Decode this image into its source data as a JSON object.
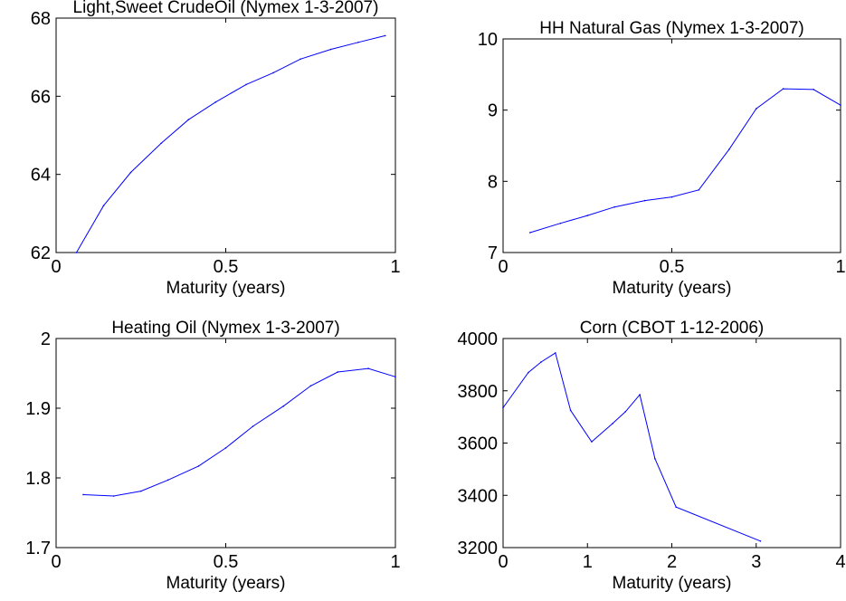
{
  "chart_data": [
    {
      "type": "line",
      "title": "Light,Sweet CrudeOil (Nymex 1-3-2007)",
      "xlabel": "Maturity (years)",
      "ylabel": "",
      "xlim": [
        0,
        1
      ],
      "ylim": [
        62,
        68
      ],
      "xticks": [
        0,
        0.5,
        1
      ],
      "xtick_labels": [
        "0",
        "0.5",
        "1"
      ],
      "yticks": [
        62,
        64,
        66,
        68
      ],
      "ytick_labels": [
        "62",
        "64",
        "66",
        "68"
      ],
      "grid": false,
      "color": "#0000ff",
      "x": [
        0.06,
        0.14,
        0.22,
        0.31,
        0.39,
        0.47,
        0.56,
        0.64,
        0.72,
        0.81,
        0.89,
        0.97
      ],
      "y": [
        62.0,
        63.2,
        64.05,
        64.8,
        65.4,
        65.85,
        66.3,
        66.6,
        66.95,
        67.2,
        67.38,
        67.55
      ]
    },
    {
      "type": "line",
      "title": "HH Natural Gas  (Nymex 1-3-2007)",
      "xlabel": "Maturity (years)",
      "ylabel": "",
      "xlim": [
        0,
        1
      ],
      "ylim": [
        7,
        10
      ],
      "xticks": [
        0,
        0.5,
        1
      ],
      "xtick_labels": [
        "0",
        "0.5",
        "1"
      ],
      "yticks": [
        7,
        8,
        9,
        10
      ],
      "ytick_labels": [
        "7",
        "8",
        "9",
        "10"
      ],
      "grid": false,
      "color": "#0000ff",
      "x": [
        0.08,
        0.17,
        0.25,
        0.33,
        0.42,
        0.5,
        0.58,
        0.67,
        0.75,
        0.83,
        0.92,
        1.0
      ],
      "y": [
        7.28,
        7.41,
        7.52,
        7.64,
        7.73,
        7.78,
        7.88,
        8.45,
        9.02,
        9.3,
        9.29,
        9.07
      ]
    },
    {
      "type": "line",
      "title": "Heating Oil (Nymex 1-3-2007)",
      "xlabel": "Maturity (years)",
      "ylabel": "",
      "xlim": [
        0,
        1
      ],
      "ylim": [
        1.7,
        2
      ],
      "xticks": [
        0,
        0.5,
        1
      ],
      "xtick_labels": [
        "0",
        "0.5",
        "1"
      ],
      "yticks": [
        1.7,
        1.8,
        1.9,
        2
      ],
      "ytick_labels": [
        "1.7",
        "1.8",
        "1.9",
        "2"
      ],
      "grid": false,
      "color": "#0000ff",
      "x": [
        0.08,
        0.17,
        0.25,
        0.33,
        0.42,
        0.5,
        0.58,
        0.67,
        0.75,
        0.83,
        0.92,
        1.0
      ],
      "y": [
        1.776,
        1.774,
        1.781,
        1.797,
        1.817,
        1.843,
        1.874,
        1.903,
        1.932,
        1.952,
        1.957,
        1.945
      ]
    },
    {
      "type": "line",
      "title": "Corn (CBOT 1-12-2006)",
      "xlabel": "Maturity (years)",
      "ylabel": "",
      "xlim": [
        0,
        4
      ],
      "ylim": [
        3200,
        4000
      ],
      "xticks": [
        0,
        1,
        2,
        3,
        4
      ],
      "xtick_labels": [
        "0",
        "1",
        "2",
        "3",
        "4"
      ],
      "yticks": [
        3200,
        3400,
        3600,
        3800,
        4000
      ],
      "ytick_labels": [
        "3200",
        "3400",
        "3600",
        "3800",
        "4000"
      ],
      "grid": false,
      "color": "#0000ff",
      "x": [
        0.0,
        0.3,
        0.45,
        0.62,
        0.8,
        1.05,
        1.3,
        1.45,
        1.62,
        1.8,
        2.05,
        3.05
      ],
      "y": [
        3735,
        3870,
        3910,
        3945,
        3725,
        3605,
        3675,
        3720,
        3785,
        3540,
        3355,
        3225
      ]
    }
  ]
}
